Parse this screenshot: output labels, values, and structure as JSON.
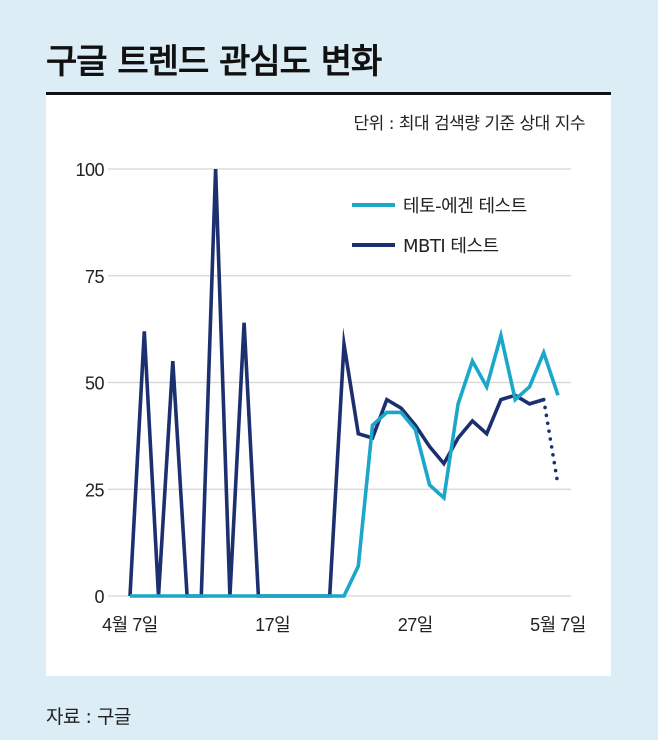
{
  "title": "구글 트렌드 관심도 변화",
  "unit": "단위 : 최대 검색량 기준 상대 지수",
  "source": "자료 : 구글",
  "colors": {
    "tetoegen": "#1ba7c9",
    "mbti": "#1c2f6e",
    "grid": "#d5d5d5",
    "panel": "#ffffff",
    "background": "#dcedf5"
  },
  "chart_data": {
    "type": "line",
    "ylim": [
      0,
      100
    ],
    "yticks": [
      0,
      25,
      50,
      75,
      100
    ],
    "x": [
      "4월 7일",
      "4월 8일",
      "4월 9일",
      "4월 10일",
      "4월 11일",
      "4월 12일",
      "4월 13일",
      "4월 14일",
      "4월 15일",
      "4월 16일",
      "4월 17일",
      "4월 18일",
      "4월 19일",
      "4월 20일",
      "4월 21일",
      "4월 22일",
      "4월 23일",
      "4월 24일",
      "4월 25일",
      "4월 26일",
      "4월 27일",
      "4월 28일",
      "4월 29일",
      "4월 30일",
      "5월 1일",
      "5월 2일",
      "5월 3일",
      "5월 4일",
      "5월 5일",
      "5월 6일",
      "5월 7일"
    ],
    "xticks": [
      {
        "index": 0,
        "label": "4월 7일"
      },
      {
        "index": 10,
        "label": "17일"
      },
      {
        "index": 20,
        "label": "27일"
      },
      {
        "index": 30,
        "label": "5월 7일"
      }
    ],
    "series": [
      {
        "name": "테토-에겐 테스트",
        "style": "solid",
        "values": [
          0,
          0,
          0,
          0,
          0,
          0,
          0,
          0,
          0,
          0,
          0,
          0,
          0,
          0,
          0,
          0,
          7,
          40,
          43,
          43,
          39,
          26,
          23,
          45,
          55,
          49,
          61,
          46,
          49,
          57,
          47
        ]
      },
      {
        "name": "MBTI 테스트",
        "style": "solid",
        "values": [
          0,
          62,
          0,
          55,
          0,
          0,
          100,
          0,
          64,
          0,
          0,
          0,
          0,
          0,
          0,
          59,
          38,
          37,
          46,
          44,
          40,
          35,
          31,
          37,
          41,
          38,
          46,
          47,
          45,
          46,
          null
        ],
        "dotted_tail": {
          "from_index": 29,
          "to_index": 30,
          "values": [
            46,
            26
          ]
        }
      }
    ],
    "legend_position": "top-right",
    "grid": true
  }
}
